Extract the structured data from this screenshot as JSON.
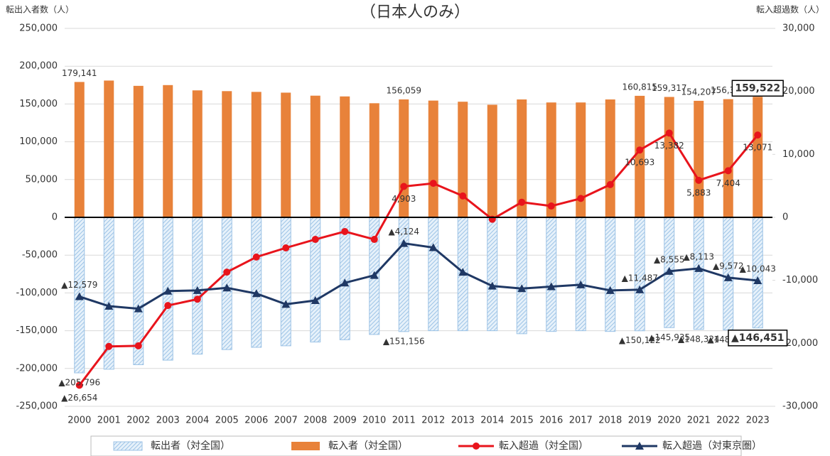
{
  "chart_data": {
    "type": "bar",
    "subtitle": "（日本人のみ）",
    "y_label": "転出入者数（人）",
    "y2_label": "転入超過数（人）",
    "categories": [
      "2000",
      "2001",
      "2002",
      "2003",
      "2004",
      "2005",
      "2006",
      "2007",
      "2008",
      "2009",
      "2010",
      "2011",
      "2012",
      "2013",
      "2014",
      "2015",
      "2016",
      "2017",
      "2018",
      "2019",
      "2020",
      "2021",
      "2022",
      "2023"
    ],
    "ylim": [
      -250000,
      250000
    ],
    "yticks": [
      {
        "value": 250000,
        "label": "250,000"
      },
      {
        "value": 200000,
        "label": "200,000"
      },
      {
        "value": 150000,
        "label": "150,000"
      },
      {
        "value": 100000,
        "label": "100,000"
      },
      {
        "value": 50000,
        "label": "50,000"
      },
      0,
      {
        "value": -50000,
        "label": "-50,000"
      },
      {
        "value": -100000,
        "label": "-100,000"
      },
      {
        "value": -150000,
        "label": "-150,000"
      },
      {
        "value": -200000,
        "label": "-200,000"
      },
      {
        "value": -250000,
        "label": "-250,000"
      }
    ],
    "y2lim": [
      -30000,
      30000
    ],
    "y2ticks": [
      {
        "value": 30000,
        "label": "30,000"
      },
      {
        "value": 20000,
        "label": "20,000"
      },
      {
        "value": 10000,
        "label": "10,000"
      },
      0,
      {
        "value": -10000,
        "label": "-10,000"
      },
      {
        "value": -20000,
        "label": "-20,000"
      },
      {
        "value": -30000,
        "label": "-30,000"
      }
    ],
    "grid": true,
    "legend": "bottom",
    "series": [
      {
        "name": "転出者（対全国）",
        "type": "bar",
        "hatch": true,
        "color": "#9dc3e6",
        "values": [
          -205796,
          -201000,
          -195000,
          -189000,
          -181000,
          -175000,
          -172000,
          -170000,
          -165000,
          -162000,
          -155000,
          -151156,
          -150000,
          -150000,
          -150000,
          -154000,
          -151000,
          -150000,
          -151000,
          -150122,
          -145935,
          -148324,
          -148994,
          -146451
        ],
        "value_labels": [
          "▲205,796",
          null,
          null,
          null,
          null,
          null,
          null,
          null,
          null,
          null,
          null,
          "▲151,156",
          null,
          null,
          null,
          null,
          null,
          null,
          null,
          "▲150,122",
          "▲145,935",
          "▲148,324",
          "▲148,994",
          "▲146,451"
        ]
      },
      {
        "name": "転入者（対全国）",
        "type": "bar",
        "color": "#e8823a",
        "values": [
          179141,
          181000,
          174000,
          175000,
          168000,
          167000,
          166000,
          165000,
          161000,
          160000,
          151000,
          156059,
          154500,
          153000,
          149000,
          156000,
          152000,
          152000,
          156000,
          160815,
          159317,
          154207,
          156398,
          159522
        ],
        "value_labels": [
          "179,141",
          null,
          null,
          null,
          null,
          null,
          null,
          null,
          null,
          null,
          null,
          "156,059",
          null,
          null,
          null,
          null,
          null,
          null,
          null,
          "160,815",
          "159,317",
          "154,207",
          "156,398",
          "159,522"
        ]
      },
      {
        "name": "転入超過（対全国）",
        "type": "line",
        "axis": "y2",
        "color": "#e8141c",
        "values": [
          -26654,
          -20500,
          -20400,
          -14000,
          -13000,
          -8700,
          -6300,
          -4850,
          -3500,
          -2250,
          -3500,
          4903,
          5400,
          3400,
          -300,
          2400,
          1800,
          3000,
          5200,
          10693,
          13382,
          5883,
          7404,
          13071
        ],
        "value_labels": [
          "▲26,654",
          null,
          null,
          null,
          null,
          null,
          null,
          null,
          null,
          null,
          null,
          "4,903",
          null,
          null,
          null,
          null,
          null,
          null,
          null,
          "10,693",
          "13,382",
          "5,883",
          "7,404",
          "13,071"
        ]
      },
      {
        "name": "転入超過（対東京圏）",
        "type": "line",
        "axis": "y2",
        "color": "#1f3864",
        "values": [
          -12579,
          -14100,
          -14500,
          -11700,
          -11600,
          -11200,
          -12100,
          -13800,
          -13200,
          -10400,
          -9200,
          -4124,
          -4800,
          -8700,
          -10900,
          -11300,
          -11000,
          -10700,
          -11600,
          -11487,
          -8555,
          -8113,
          -9572,
          -10043
        ],
        "value_labels": [
          "▲12,579",
          null,
          null,
          null,
          null,
          null,
          null,
          null,
          null,
          null,
          null,
          "▲4,124",
          null,
          null,
          null,
          null,
          null,
          null,
          null,
          "▲11,487",
          "▲8,555",
          "▲8,113",
          "▲9,572",
          "▲10,043"
        ]
      }
    ]
  }
}
